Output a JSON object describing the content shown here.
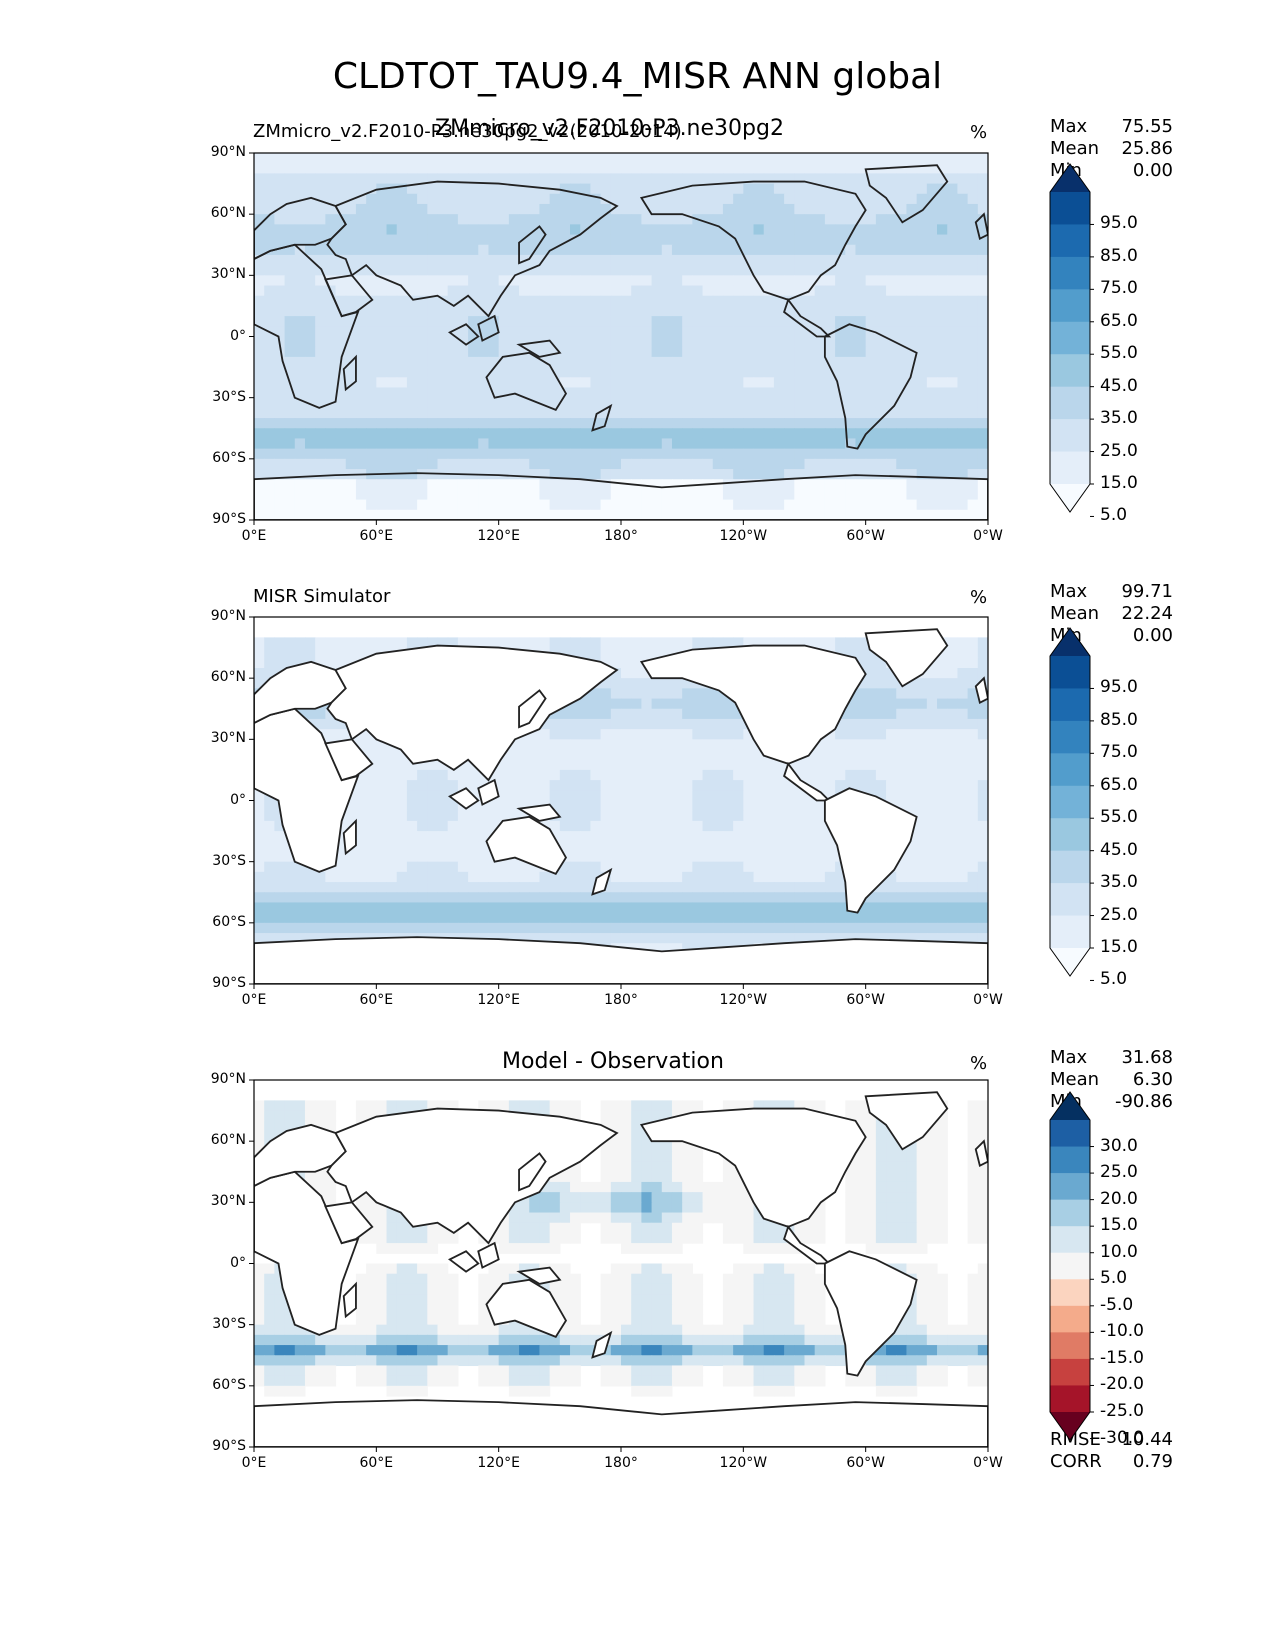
{
  "figure": {
    "title": "CLDTOT_TAU9.4_MISR ANN global"
  },
  "chart_data": [
    {
      "type": "heatmap",
      "id": "test",
      "title_left": "ZMmicro_v2.F2010-P3.ne30pg2_v2(2010-2014)",
      "title_center": "ZMmicro_v2.F2010-P3.ne30pg2",
      "units": "%",
      "stats": {
        "Max": "75.55",
        "Mean": "25.86",
        "Min": "0.00"
      },
      "colorbar": {
        "levels": [
          0,
          5,
          15,
          25,
          35,
          45,
          55,
          65,
          75,
          85,
          95,
          100
        ],
        "tick_labels": [
          "95.0",
          "85.0",
          "75.0",
          "65.0",
          "55.0",
          "45.0",
          "35.0",
          "25.0",
          "15.0",
          "5.0"
        ],
        "colors": [
          "#f7fbff",
          "#e4eef9",
          "#d2e3f3",
          "#bad6eb",
          "#9ac8e0",
          "#73b2d8",
          "#529dcc",
          "#3383be",
          "#1c6aaf",
          "#0b4f95",
          "#08306b"
        ]
      },
      "xlabels": [
        "0°E",
        "60°E",
        "120°E",
        "180°",
        "120°W",
        "60°W",
        "0°W"
      ],
      "ylabels": [
        "90°N",
        "60°N",
        "30°N",
        "0°",
        "30°S",
        "60°S",
        "90°S"
      ]
    },
    {
      "type": "heatmap",
      "id": "ref",
      "title_left": "MISR Simulator",
      "units": "%",
      "stats": {
        "Max": "99.71",
        "Mean": "22.24",
        "Min": "0.00"
      },
      "colorbar": {
        "levels": [
          0,
          5,
          15,
          25,
          35,
          45,
          55,
          65,
          75,
          85,
          95,
          100
        ],
        "tick_labels": [
          "95.0",
          "85.0",
          "75.0",
          "65.0",
          "55.0",
          "45.0",
          "35.0",
          "25.0",
          "15.0",
          "5.0"
        ],
        "colors": [
          "#f7fbff",
          "#e4eef9",
          "#d2e3f3",
          "#bad6eb",
          "#9ac8e0",
          "#73b2d8",
          "#529dcc",
          "#3383be",
          "#1c6aaf",
          "#0b4f95",
          "#08306b"
        ]
      },
      "xlabels": [
        "0°E",
        "60°E",
        "120°E",
        "180°",
        "120°W",
        "60°W",
        "0°W"
      ],
      "ylabels": [
        "90°N",
        "60°N",
        "30°N",
        "0°",
        "30°S",
        "60°S",
        "90°S"
      ]
    },
    {
      "type": "heatmap",
      "id": "diff",
      "title_center": "Model - Observation",
      "units": "%",
      "stats": {
        "Max": "31.68",
        "Mean": "6.30",
        "Min": "-90.86"
      },
      "metrics": {
        "RMSE": "10.44",
        "CORR": "0.79"
      },
      "colorbar": {
        "levels": [
          -35,
          -30,
          -25,
          -20,
          -15,
          -10,
          -5,
          5,
          10,
          15,
          20,
          25,
          30,
          35
        ],
        "tick_labels": [
          "30.0",
          "25.0",
          "20.0",
          "15.0",
          "10.0",
          "5.0",
          "-5.0",
          "-10.0",
          "-15.0",
          "-20.0",
          "-25.0",
          "-30.0"
        ],
        "colors": [
          "#67001f",
          "#a51429",
          "#c7413f",
          "#e07b65",
          "#f4ab8b",
          "#fbd4bf",
          "#f5f5f5",
          "#d7e7f1",
          "#a8cfe4",
          "#6aa9d0",
          "#3a86bd",
          "#1d5fa4",
          "#053061"
        ]
      },
      "xlabels": [
        "0°E",
        "60°E",
        "120°E",
        "180°",
        "120°W",
        "60°W",
        "0°W"
      ],
      "ylabels": [
        "90°N",
        "60°N",
        "30°N",
        "0°",
        "30°S",
        "60°S",
        "90°S"
      ]
    }
  ]
}
